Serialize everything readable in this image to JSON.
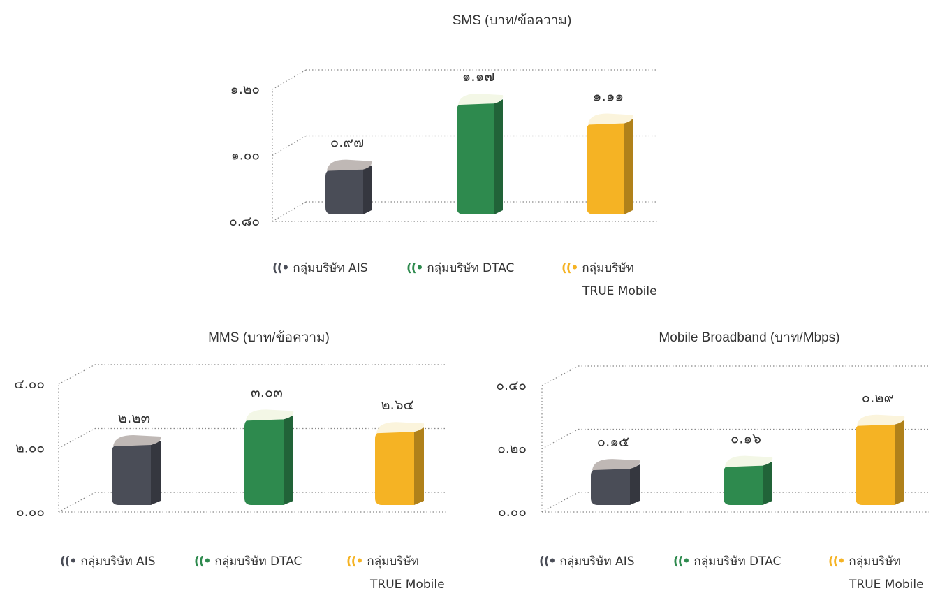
{
  "chart_data": [
    {
      "type": "bar",
      "title": "SMS (บาท/ข้อความ)",
      "categories": [
        "กลุ่มบริษัท AIS",
        "กลุ่มบริษัท DTAC",
        "กลุ่มบริษัท TRUE Mobile"
      ],
      "values": [
        0.97,
        1.17,
        1.11
      ],
      "value_labels": [
        "๐.๙๗",
        "๑.๑๗",
        "๑.๑๑"
      ],
      "yticks": [
        0.8,
        1.0,
        1.2
      ],
      "ytick_labels": [
        "๐.๘๐",
        "๑.๐๐",
        "๑.๒๐"
      ],
      "ylim": [
        0.8,
        1.2
      ],
      "colors": [
        "#4a4d57",
        "#2e8a4e",
        "#f5b324"
      ],
      "grid": true,
      "legend": "bottom",
      "legend_labels": [
        {
          "icon": "((•",
          "line1": "กลุ่มบริษัท AIS",
          "line2": ""
        },
        {
          "icon": "((•",
          "line1": "กลุ่มบริษัท DTAC",
          "line2": ""
        },
        {
          "icon": "((•",
          "line1": "กลุ่มบริษัท",
          "line2": "TRUE Mobile"
        }
      ]
    },
    {
      "type": "bar",
      "title": "MMS (บาท/ข้อความ)",
      "categories": [
        "กลุ่มบริษัท AIS",
        "กลุ่มบริษัท DTAC",
        "กลุ่มบริษัท TRUE Mobile"
      ],
      "values": [
        2.23,
        3.03,
        2.64
      ],
      "value_labels": [
        "๒.๒๓",
        "๓.๐๓",
        "๒.๖๔"
      ],
      "yticks": [
        0,
        2,
        4
      ],
      "ytick_labels": [
        "๐.๐๐",
        "๒.๐๐",
        "๔.๐๐"
      ],
      "ylim": [
        0,
        4
      ],
      "colors": [
        "#4a4d57",
        "#2e8a4e",
        "#f5b324"
      ],
      "grid": true,
      "legend": "bottom",
      "legend_labels": [
        {
          "icon": "((•",
          "line1": "กลุ่มบริษัท AIS",
          "line2": ""
        },
        {
          "icon": "((•",
          "line1": "กลุ่มบริษัท DTAC",
          "line2": ""
        },
        {
          "icon": "((•",
          "line1": "กลุ่มบริษัท",
          "line2": "TRUE Mobile"
        }
      ]
    },
    {
      "type": "bar",
      "title": "Mobile Broadband (บาท/Mbps)",
      "categories": [
        "กลุ่มบริษัท AIS",
        "กลุ่มบริษัท DTAC",
        "กลุ่มบริษัท TRUE Mobile"
      ],
      "values": [
        0.15,
        0.16,
        0.29
      ],
      "value_labels": [
        "๐.๑๕",
        "๐.๑๖",
        "๐.๒๙"
      ],
      "yticks": [
        0,
        0.2,
        0.4
      ],
      "ytick_labels": [
        "๐.๐๐",
        "๐.๒๐",
        "๐.๔๐"
      ],
      "ylim": [
        0,
        0.4
      ],
      "colors": [
        "#4a4d57",
        "#2e8a4e",
        "#f5b324"
      ],
      "grid": true,
      "legend": "bottom",
      "legend_labels": [
        {
          "icon": "((•",
          "line1": "กลุ่มบริษัท AIS",
          "line2": ""
        },
        {
          "icon": "((•",
          "line1": "กลุ่มบริษัท DTAC",
          "line2": ""
        },
        {
          "icon": "((•",
          "line1": "กลุ่มบริษัท",
          "line2": "TRUE Mobile"
        }
      ]
    }
  ]
}
